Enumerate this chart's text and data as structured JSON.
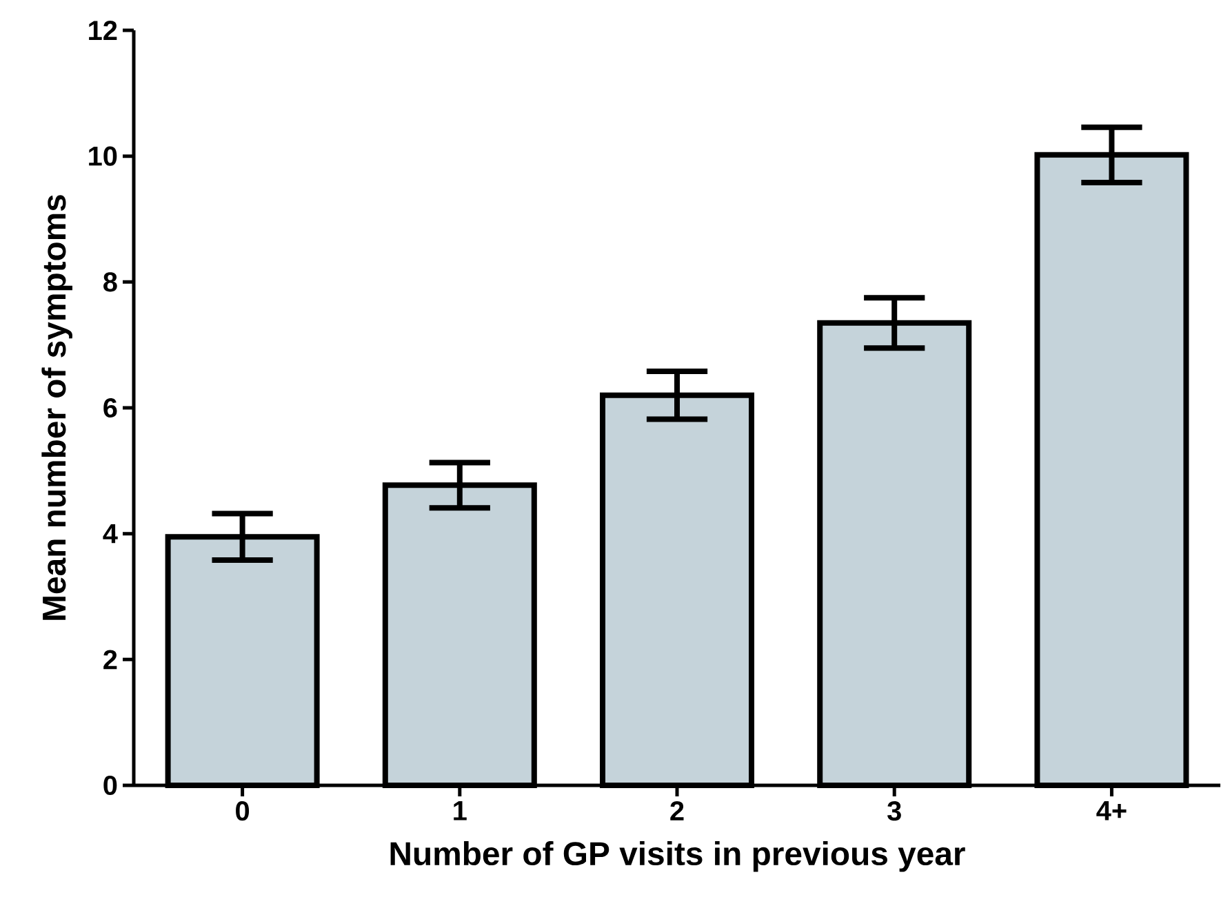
{
  "chart_data": {
    "type": "bar",
    "xlabel": "Number of GP visits in previous year",
    "ylabel": "Mean number of symptoms",
    "categories": [
      "0",
      "1",
      "2",
      "3",
      "4+"
    ],
    "values": [
      3.95,
      4.77,
      6.2,
      7.35,
      10.02
    ],
    "errors": [
      0.37,
      0.36,
      0.38,
      0.4,
      0.44
    ],
    "color": "#c5d3da",
    "ylim": [
      0,
      12
    ],
    "yticks": [
      0,
      2,
      4,
      6,
      8,
      10,
      12
    ],
    "grid": false
  }
}
